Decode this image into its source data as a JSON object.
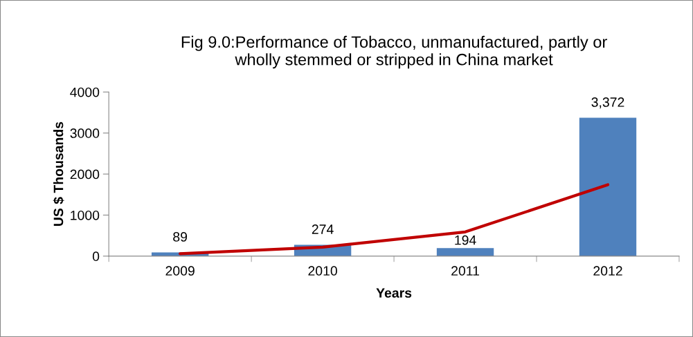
{
  "chart_data": {
    "type": "bar",
    "title": "Fig 9.0:Performance of Tobacco, unmanufactured, partly or\nwholly stemmed or stripped in China market",
    "xlabel": "Years",
    "ylabel": "US $ Thousands",
    "categories": [
      "2009",
      "2010",
      "2011",
      "2012"
    ],
    "series": [
      {
        "color": "#4f81bd",
        "values": [
          89,
          274,
          194,
          3372
        ],
        "value_labels": [
          "89",
          "274",
          "194",
          "3,372"
        ]
      },
      {
        "type": "line",
        "color": "#c00000",
        "values": [
          60,
          220,
          590,
          1740
        ]
      }
    ],
    "ylim": [
      0,
      4000
    ],
    "yticks": [
      0,
      1000,
      2000,
      3000,
      4000
    ],
    "grid": false,
    "legend": false
  }
}
